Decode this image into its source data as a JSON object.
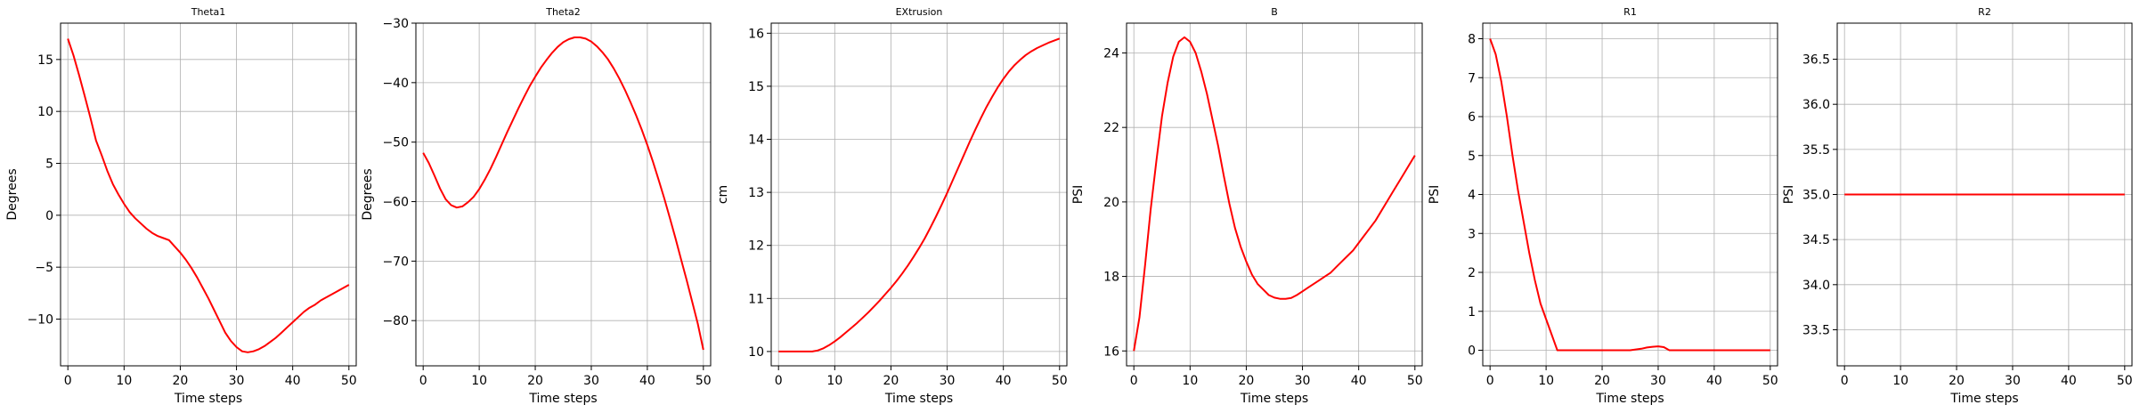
{
  "figure": {
    "line_color": "#ff0000",
    "grid": true
  },
  "chart_data": [
    {
      "type": "line",
      "title": "Theta1",
      "xlabel": "Time steps",
      "ylabel": "Degrees",
      "xlim": [
        -1.3,
        51.3
      ],
      "ylim": [
        -14.5,
        18.5
      ],
      "xticks": [
        0,
        10,
        20,
        30,
        40,
        50
      ],
      "yticks": [
        -10,
        -5,
        0,
        5,
        10,
        15
      ],
      "series": [
        {
          "x": [
            0,
            1,
            2,
            3,
            4,
            5,
            6,
            7,
            8,
            9,
            10,
            11,
            12,
            13,
            14,
            15,
            16,
            17,
            18,
            19,
            20,
            21,
            22,
            23,
            24,
            25,
            26,
            27,
            28,
            29,
            30,
            31,
            32,
            33,
            34,
            35,
            36,
            37,
            38,
            39,
            40,
            41,
            42,
            43,
            44,
            45,
            46,
            47,
            48,
            49,
            50
          ],
          "y": [
            17.0,
            15.4,
            13.5,
            11.5,
            9.4,
            7.2,
            5.8,
            4.3,
            3.0,
            2.0,
            1.1,
            0.3,
            -0.3,
            -0.8,
            -1.3,
            -1.7,
            -2.0,
            -2.2,
            -2.4,
            -3.0,
            -3.6,
            -4.3,
            -5.1,
            -6.0,
            -7.0,
            -8.0,
            -9.1,
            -10.2,
            -11.3,
            -12.1,
            -12.7,
            -13.1,
            -13.2,
            -13.1,
            -12.9,
            -12.6,
            -12.2,
            -11.8,
            -11.3,
            -10.8,
            -10.3,
            -9.8,
            -9.3,
            -8.9,
            -8.6,
            -8.2,
            -7.9,
            -7.6,
            -7.3,
            -7.0,
            -6.7
          ]
        }
      ]
    },
    {
      "type": "line",
      "title": "Theta2",
      "xlabel": "Time steps",
      "ylabel": "Degrees",
      "xlim": [
        -1.3,
        51.3
      ],
      "ylim": [
        -87.6,
        -30.0
      ],
      "xticks": [
        0,
        10,
        20,
        30,
        40,
        50
      ],
      "yticks": [
        -80,
        -70,
        -60,
        -50,
        -40,
        -30
      ],
      "series": [
        {
          "x": [
            0,
            1,
            2,
            3,
            4,
            5,
            6,
            7,
            8,
            9,
            10,
            11,
            12,
            13,
            14,
            15,
            16,
            17,
            18,
            19,
            20,
            21,
            22,
            23,
            24,
            25,
            26,
            27,
            28,
            29,
            30,
            31,
            32,
            33,
            34,
            35,
            36,
            37,
            38,
            39,
            40,
            41,
            42,
            43,
            44,
            45,
            46,
            47,
            48,
            49,
            50
          ],
          "y": [
            -51.8,
            -53.5,
            -55.6,
            -57.8,
            -59.6,
            -60.6,
            -61.0,
            -60.8,
            -60.1,
            -59.2,
            -57.9,
            -56.3,
            -54.5,
            -52.5,
            -50.4,
            -48.3,
            -46.3,
            -44.3,
            -42.4,
            -40.6,
            -39.0,
            -37.5,
            -36.2,
            -35.0,
            -34.0,
            -33.2,
            -32.7,
            -32.4,
            -32.4,
            -32.6,
            -33.1,
            -33.9,
            -34.9,
            -36.1,
            -37.6,
            -39.3,
            -41.2,
            -43.3,
            -45.5,
            -47.9,
            -50.5,
            -53.3,
            -56.3,
            -59.4,
            -62.7,
            -66.1,
            -69.6,
            -73.1,
            -76.8,
            -80.5,
            -84.9
          ]
        }
      ]
    },
    {
      "type": "line",
      "title": "EXtrusion",
      "xlabel": "Time steps",
      "ylabel": "cm",
      "xlim": [
        -1.3,
        51.3
      ],
      "ylim": [
        9.73,
        16.19
      ],
      "xticks": [
        0,
        10,
        20,
        30,
        40,
        50
      ],
      "yticks": [
        10,
        11,
        12,
        13,
        14,
        15,
        16
      ],
      "series": [
        {
          "x": [
            0,
            1,
            2,
            3,
            4,
            5,
            6,
            7,
            8,
            9,
            10,
            11,
            12,
            13,
            14,
            15,
            16,
            17,
            18,
            19,
            20,
            21,
            22,
            23,
            24,
            25,
            26,
            27,
            28,
            29,
            30,
            31,
            32,
            33,
            34,
            35,
            36,
            37,
            38,
            39,
            40,
            41,
            42,
            43,
            44,
            45,
            46,
            47,
            48,
            49,
            50
          ],
          "y": [
            10.0,
            10.0,
            10.0,
            10.0,
            10.0,
            10.0,
            10.0,
            10.02,
            10.06,
            10.12,
            10.19,
            10.27,
            10.36,
            10.45,
            10.54,
            10.64,
            10.74,
            10.85,
            10.96,
            11.08,
            11.2,
            11.33,
            11.47,
            11.62,
            11.78,
            11.95,
            12.13,
            12.33,
            12.54,
            12.76,
            12.99,
            13.23,
            13.47,
            13.71,
            13.95,
            14.18,
            14.4,
            14.61,
            14.8,
            14.98,
            15.14,
            15.28,
            15.4,
            15.5,
            15.59,
            15.66,
            15.72,
            15.77,
            15.82,
            15.86,
            15.9
          ]
        }
      ]
    },
    {
      "type": "line",
      "title": "B",
      "xlabel": "Time steps",
      "ylabel": "PSI",
      "xlim": [
        -1.3,
        51.3
      ],
      "ylim": [
        15.6,
        24.8
      ],
      "xticks": [
        0,
        10,
        20,
        30,
        40,
        50
      ],
      "yticks": [
        16,
        18,
        20,
        22,
        24
      ],
      "series": [
        {
          "x": [
            0,
            1,
            2,
            3,
            4,
            5,
            6,
            7,
            8,
            9,
            10,
            11,
            12,
            13,
            14,
            15,
            16,
            17,
            18,
            19,
            20,
            21,
            22,
            23,
            24,
            25,
            26,
            27,
            28,
            29,
            30,
            31,
            32,
            33,
            34,
            35,
            36,
            37,
            38,
            39,
            40,
            41,
            42,
            43,
            44,
            45,
            46,
            47,
            48,
            49,
            50
          ],
          "y": [
            16.0,
            16.9,
            18.3,
            19.8,
            21.1,
            22.3,
            23.2,
            23.9,
            24.3,
            24.42,
            24.3,
            24.0,
            23.5,
            22.9,
            22.2,
            21.5,
            20.7,
            19.95,
            19.3,
            18.8,
            18.4,
            18.05,
            17.8,
            17.65,
            17.5,
            17.43,
            17.4,
            17.4,
            17.42,
            17.5,
            17.6,
            17.7,
            17.8,
            17.9,
            18.0,
            18.1,
            18.25,
            18.4,
            18.55,
            18.7,
            18.9,
            19.1,
            19.3,
            19.5,
            19.75,
            20.0,
            20.25,
            20.5,
            20.75,
            21.0,
            21.25
          ]
        }
      ]
    },
    {
      "type": "line",
      "title": "R1",
      "xlabel": "Time steps",
      "ylabel": "PSI",
      "xlim": [
        -1.3,
        51.3
      ],
      "ylim": [
        -0.4,
        8.4
      ],
      "xticks": [
        0,
        10,
        20,
        30,
        40,
        50
      ],
      "yticks": [
        0,
        1,
        2,
        3,
        4,
        5,
        6,
        7,
        8
      ],
      "series": [
        {
          "x": [
            0,
            1,
            2,
            3,
            4,
            5,
            6,
            7,
            8,
            9,
            10,
            11,
            12,
            13,
            14,
            15,
            16,
            17,
            18,
            19,
            20,
            21,
            22,
            23,
            24,
            25,
            26,
            27,
            28,
            29,
            30,
            31,
            32,
            33,
            34,
            35,
            36,
            37,
            38,
            39,
            40,
            41,
            42,
            43,
            44,
            45,
            46,
            47,
            48,
            49,
            50
          ],
          "y": [
            8.0,
            7.6,
            6.9,
            6.0,
            5.0,
            4.1,
            3.3,
            2.5,
            1.8,
            1.2,
            0.8,
            0.4,
            0.0,
            0.0,
            0.0,
            0.0,
            0.0,
            0.0,
            0.0,
            0.0,
            0.0,
            0.0,
            0.0,
            0.0,
            0.0,
            0.0,
            0.02,
            0.04,
            0.07,
            0.09,
            0.1,
            0.08,
            0.0,
            0.0,
            0.0,
            0.0,
            0.0,
            0.0,
            0.0,
            0.0,
            0.0,
            0.0,
            0.0,
            0.0,
            0.0,
            0.0,
            0.0,
            0.0,
            0.0,
            0.0,
            0.0
          ]
        }
      ]
    },
    {
      "type": "line",
      "title": "R2",
      "xlabel": "Time steps",
      "ylabel": "PSI",
      "xlim": [
        -1.3,
        51.3
      ],
      "ylim": [
        33.1,
        36.9
      ],
      "xticks": [
        0,
        10,
        20,
        30,
        40,
        50
      ],
      "yticks": [
        33.5,
        34.0,
        34.5,
        35.0,
        35.5,
        36.0,
        36.5
      ],
      "ytick_decimals": 1,
      "series": [
        {
          "x": [
            0,
            50
          ],
          "y": [
            35.0,
            35.0
          ]
        }
      ]
    }
  ]
}
